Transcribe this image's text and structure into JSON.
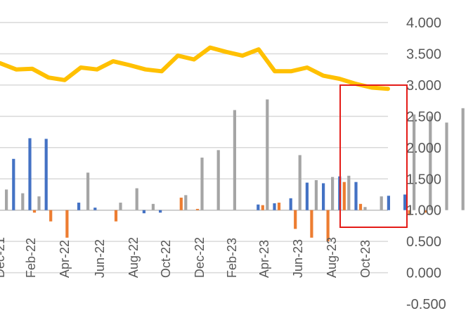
{
  "chart_data": {
    "type": "bar",
    "x_ticks": [
      "Dec-21",
      "Feb-22",
      "Apr-22",
      "Jun-22",
      "Aug-22",
      "Oct-22",
      "Dec-22",
      "Feb-23",
      "Apr-23",
      "Jun-23",
      "Aug-23",
      "Oct-23"
    ],
    "y_ticks": [
      "4.000",
      "3.500",
      "3.000",
      "2.500",
      "2.000",
      "1.500",
      "1.000",
      "0.500",
      "0.000",
      "-0.500"
    ],
    "ylim": [
      -0.5,
      4.0
    ],
    "grid": true,
    "colors": {
      "blue": "#4472C4",
      "orange": "#ED7D31",
      "gray": "#A5A5A5",
      "line": "#FFC000",
      "gridline": "#D9D9D9",
      "highlight": "#E41B17"
    },
    "series": [
      {
        "type": "bar",
        "color": "#4472C4",
        "values": [
          null,
          1.82,
          2.15,
          2.14,
          null,
          1.12,
          1.04,
          null,
          null,
          0.95,
          0.96,
          null,
          null,
          null,
          null,
          null,
          1.09,
          1.11,
          1.19,
          1.44,
          1.43,
          1.54,
          1.45,
          null,
          1.23,
          1.25,
          null,
          null,
          null,
          null,
          null
        ]
      },
      {
        "type": "bar",
        "color": "#ED7D31",
        "values": [
          null,
          null,
          0.96,
          0.82,
          0.56,
          null,
          null,
          0.82,
          null,
          null,
          null,
          1.2,
          1.02,
          null,
          null,
          null,
          1.08,
          1.12,
          0.7,
          0.56,
          0.5,
          1.45,
          1.1,
          null,
          null,
          0.92,
          0.96,
          null,
          null,
          null,
          null
        ]
      },
      {
        "type": "bar",
        "color": "#A5A5A5",
        "values": [
          1.33,
          1.27,
          1.22,
          null,
          null,
          1.6,
          null,
          1.12,
          1.35,
          1.1,
          null,
          1.24,
          1.84,
          1.96,
          2.6,
          null,
          2.77,
          null,
          1.88,
          1.48,
          1.53,
          1.55,
          1.05,
          1.22,
          null,
          2.53,
          2.5,
          2.4,
          2.63,
          2.5,
          null
        ]
      },
      {
        "type": "line",
        "color": "#FFC000",
        "values": [
          3.35,
          3.25,
          3.26,
          3.12,
          3.08,
          3.28,
          3.25,
          3.38,
          3.32,
          3.25,
          3.22,
          3.47,
          3.41,
          3.6,
          3.53,
          3.47,
          3.57,
          3.22,
          3.22,
          3.28,
          3.15,
          3.1,
          3.02,
          2.96,
          2.94
        ]
      }
    ],
    "highlight_box": {
      "color": "#E41B17"
    }
  }
}
